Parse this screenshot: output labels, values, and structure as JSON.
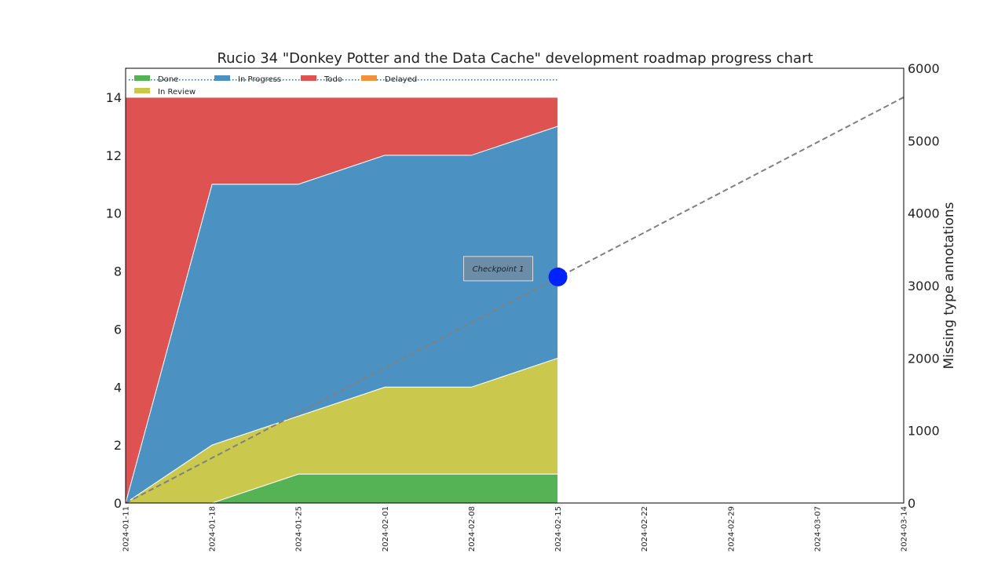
{
  "chart_data": {
    "type": "area",
    "title": "Rucio 34 \"Donkey Potter and the Data Cache\" development roadmap progress chart",
    "x_dates": [
      "2024-01-11",
      "2024-01-18",
      "2024-01-25",
      "2024-02-01",
      "2024-02-08",
      "2024-02-15"
    ],
    "xlim": [
      "2024-01-11",
      "2024-03-14"
    ],
    "x_ticks": [
      "2024-01-11",
      "2024-01-18",
      "2024-01-25",
      "2024-02-01",
      "2024-02-08",
      "2024-02-15",
      "2024-02-22",
      "2024-02-29",
      "2024-03-07",
      "2024-03-14"
    ],
    "ylim": [
      0,
      15
    ],
    "y_ticks": [
      0,
      2,
      4,
      6,
      8,
      10,
      12,
      14
    ],
    "stacked": true,
    "series": [
      {
        "name": "Done",
        "color": "#55b255",
        "values": [
          0,
          0,
          1,
          1,
          1,
          1
        ]
      },
      {
        "name": "In Review",
        "color": "#cac94e",
        "values": [
          0,
          2,
          2,
          3,
          3,
          4
        ]
      },
      {
        "name": "In Progress",
        "color": "#4b92c3",
        "values": [
          0,
          9,
          8,
          8,
          8,
          8
        ]
      },
      {
        "name": "Todo",
        "color": "#df5252",
        "values": [
          14,
          3,
          3,
          2,
          2,
          1
        ]
      },
      {
        "name": "Delayed",
        "color": "#f0923a",
        "values": [
          0,
          0,
          0,
          0,
          0,
          0
        ]
      }
    ],
    "legend_order": [
      "Done",
      "In Progress",
      "Todo",
      "Delayed",
      "In Review"
    ],
    "legend_placement": "top-left",
    "secondary_axis": {
      "ylabel": "Missing type annotations",
      "ylim": [
        0,
        6000
      ],
      "y_ticks": [
        0,
        1000,
        2000,
        3000,
        4000,
        5000,
        6000
      ],
      "trend_line": {
        "style": "dashed",
        "color": "#808080",
        "points": [
          {
            "x": "2024-01-11",
            "y": 0
          },
          {
            "x": "2024-03-14",
            "y": 5600
          }
        ]
      }
    },
    "reference_line": {
      "style": "dotted",
      "color": "#1f77b4",
      "y": 14.6
    },
    "marker": {
      "x": "2024-02-15",
      "y": 7.8,
      "color": "#0022ff"
    },
    "annotation": {
      "text": "Checkpoint 1",
      "x": "2024-02-15",
      "y": 8.1
    },
    "grid": false
  }
}
